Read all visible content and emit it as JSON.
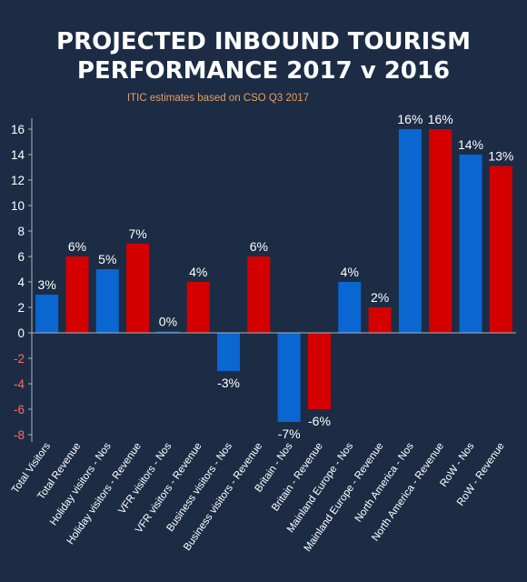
{
  "chart_data": {
    "type": "bar",
    "title_lines": [
      "PROJECTED INBOUND TOURISM",
      "PERFORMANCE 2017 v 2016"
    ],
    "subtitle": "ITIC estimates based on CSO Q3 2017",
    "categories": [
      "Total Visitors",
      "Total Revenue",
      "Holiday visitors - Nos",
      "Holiday visitors - Revenue",
      "VFR visitors - Nos",
      "VFR visitors - Revenue",
      "Business visitors - Nos",
      "Business visitors - Revenue",
      "Britain - Nos",
      "Britain - Revenue",
      "Mainland Europe - Nos",
      "Mainland Europe - Revenue",
      "North America - Nos",
      "North America - Revenue",
      "RoW - Nos",
      "RoW - Revenue"
    ],
    "values": [
      3,
      6,
      5,
      7,
      0,
      4,
      -3,
      6,
      -7,
      -6,
      4,
      2,
      16,
      16,
      14,
      13
    ],
    "bar_values": [
      3,
      6,
      5,
      7,
      0.1,
      4,
      -3,
      6,
      -7,
      -6,
      4,
      2,
      16,
      16,
      14,
      13.1
    ],
    "data_labels": [
      "3%",
      "6%",
      "5%",
      "7%",
      "0%",
      "4%",
      "-3%",
      "6%",
      "-7%",
      "-6%",
      "4%",
      "2%",
      "16%",
      "16%",
      "14%",
      "13%"
    ],
    "bar_colors": [
      "#0a66d0",
      "#d40000",
      "#0a66d0",
      "#d40000",
      "#0a66d0",
      "#d40000",
      "#0a66d0",
      "#d40000",
      "#0a66d0",
      "#d40000",
      "#0a66d0",
      "#d40000",
      "#0a66d0",
      "#d40000",
      "#0a66d0",
      "#d40000"
    ],
    "yticks": [
      16,
      14,
      12,
      10,
      8,
      6,
      4,
      2,
      0,
      -2,
      -4,
      -6,
      -8
    ],
    "ylim": [
      -8,
      17
    ],
    "xlabel": "",
    "ylabel": "",
    "grid": false,
    "colors": {
      "background": "#1c2c44",
      "positive_tick": "#ffffff",
      "negative_tick": "#ff6b6b",
      "subtitle": "#e6a063",
      "axis": "#aab4c4"
    }
  }
}
